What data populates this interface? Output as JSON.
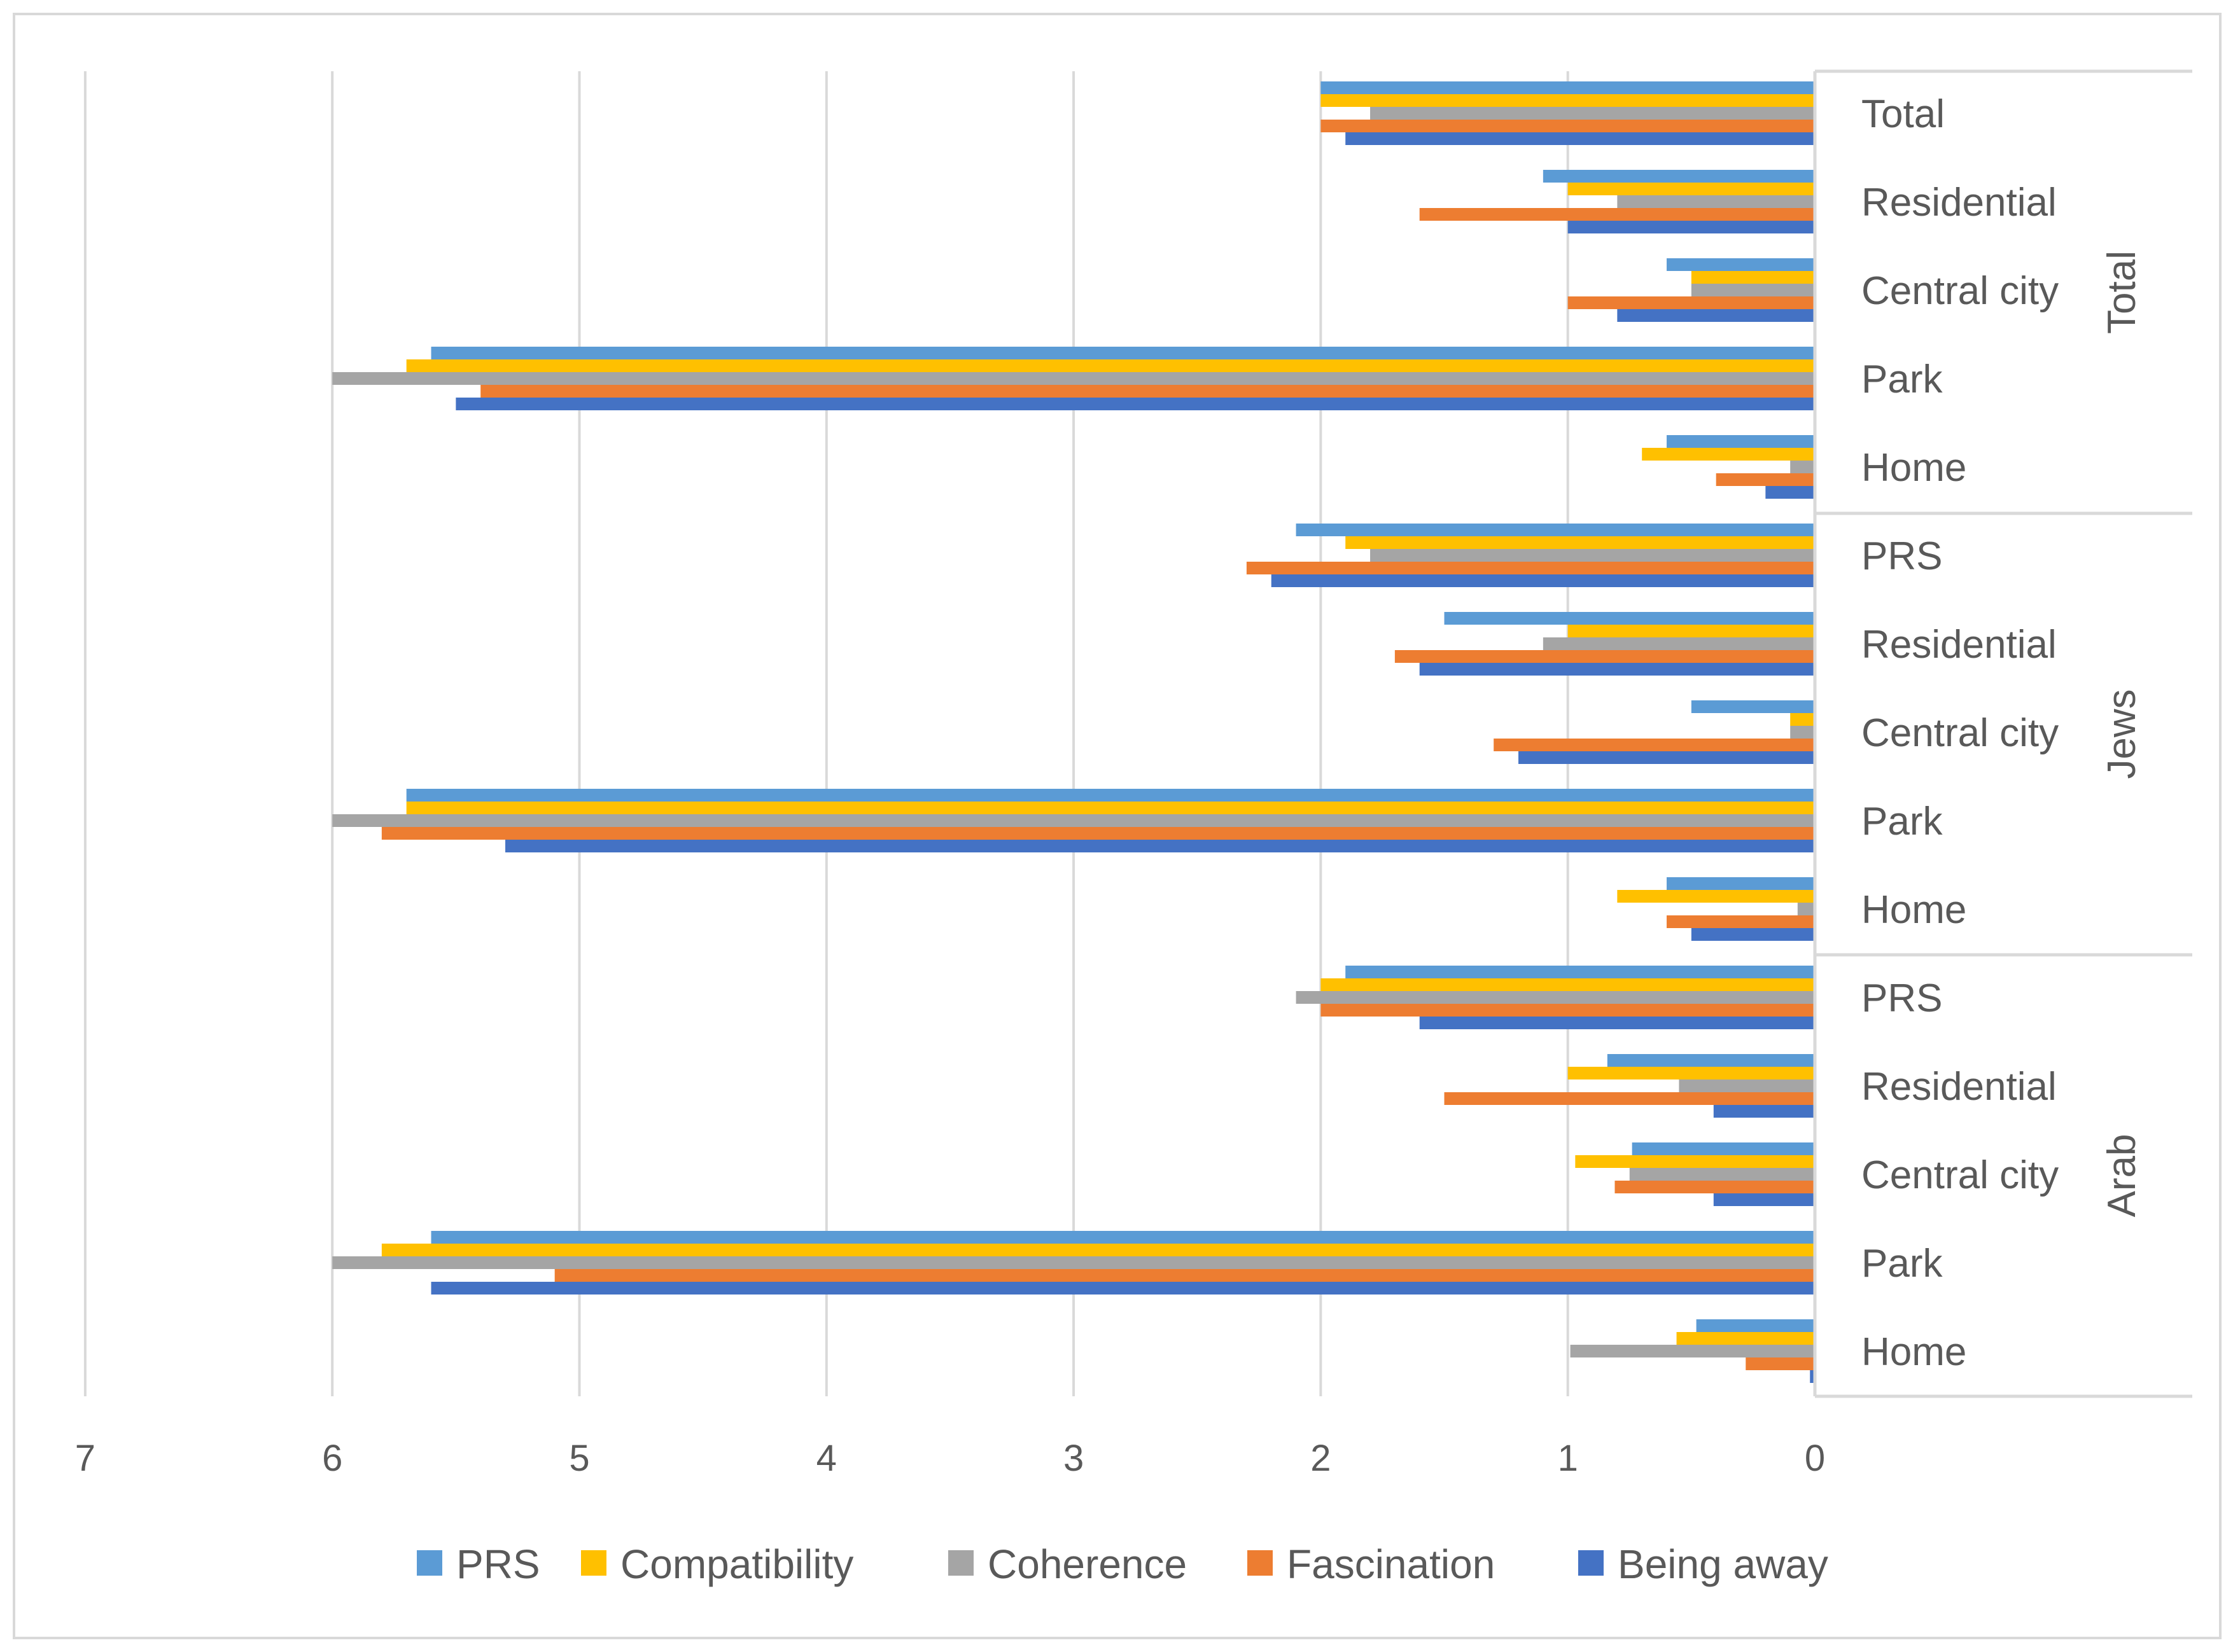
{
  "chart_data": {
    "type": "bar",
    "orientation": "horizontal",
    "x_axis": "reversed",
    "xlim": [
      0,
      7
    ],
    "xticks": [
      "7",
      "6",
      "5",
      "4",
      "3",
      "2",
      "1",
      "0"
    ],
    "grid": true,
    "legend_position": "bottom",
    "groups": [
      {
        "name": "Total",
        "categories": [
          "Total",
          "Residential",
          "Central city",
          "Park",
          "Home"
        ]
      },
      {
        "name": "Jews",
        "categories": [
          "PRS",
          "Residential",
          "Central city",
          "Park",
          "Home"
        ]
      },
      {
        "name": "Arab",
        "categories": [
          "PRS",
          "Residential",
          "Central city",
          "Park",
          "Home"
        ]
      }
    ],
    "series": [
      {
        "name": "PRS",
        "color": "#5B9BD5",
        "values": [
          2.0,
          1.1,
          0.6,
          5.6,
          0.6,
          2.1,
          1.5,
          0.5,
          5.7,
          0.6,
          1.9,
          0.84,
          0.74,
          5.6,
          0.48
        ]
      },
      {
        "name": "Compatibility",
        "color": "#FFC000",
        "values": [
          2.0,
          1.0,
          0.5,
          5.7,
          0.7,
          1.9,
          1.0,
          0.1,
          5.7,
          0.8,
          2.0,
          1.0,
          0.97,
          5.8,
          0.56
        ]
      },
      {
        "name": "Coherence",
        "color": "#A5A5A5",
        "values": [
          1.8,
          0.8,
          0.5,
          6.0,
          0.1,
          1.8,
          1.1,
          0.1,
          6.0,
          0.07,
          2.1,
          0.55,
          0.75,
          6.0,
          0.99
        ]
      },
      {
        "name": "Fascination",
        "color": "#ED7D31",
        "values": [
          2.0,
          1.6,
          1.0,
          5.4,
          0.4,
          2.3,
          1.7,
          1.3,
          5.8,
          0.6,
          2.0,
          1.5,
          0.81,
          5.1,
          0.28
        ]
      },
      {
        "name": "Being away",
        "color": "#4472C4",
        "values": [
          1.9,
          1.0,
          0.8,
          5.5,
          0.2,
          2.2,
          1.6,
          1.2,
          5.3,
          0.5,
          1.6,
          0.41,
          0.41,
          5.6,
          0.02
        ]
      }
    ]
  }
}
